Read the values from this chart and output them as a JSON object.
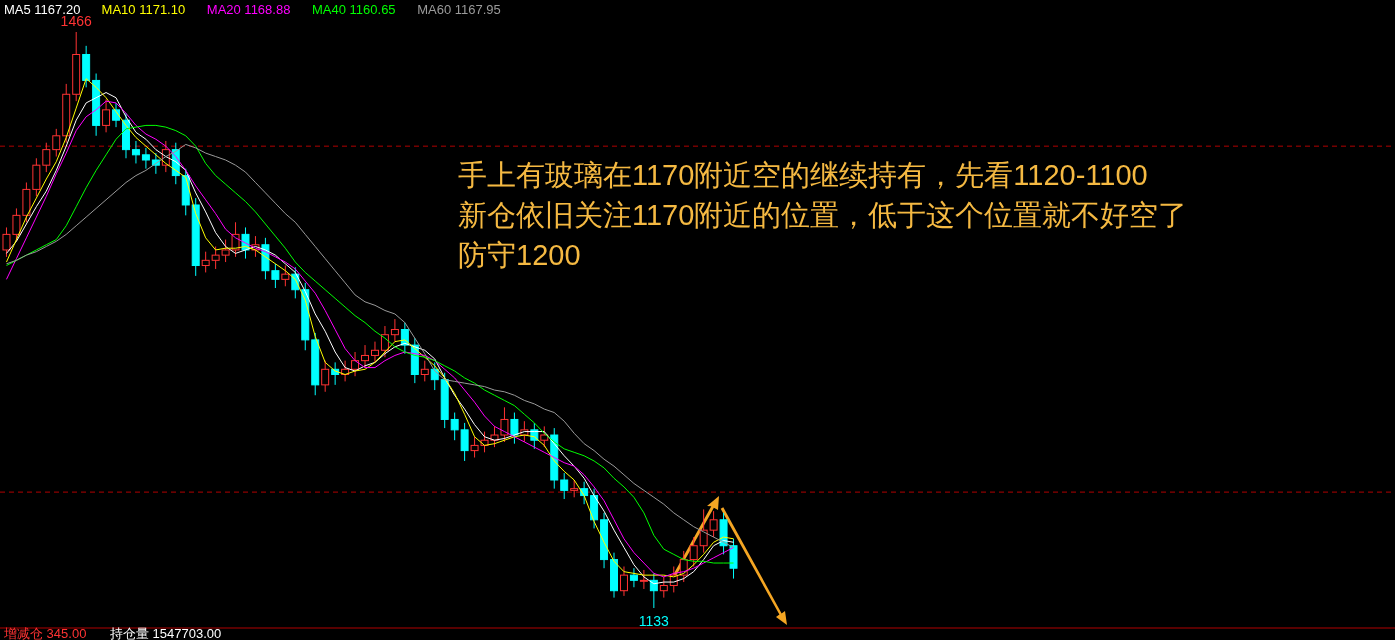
{
  "chart_data": {
    "type": "candlestick",
    "categories": [
      null,
      null,
      null,
      null,
      null,
      null,
      null,
      null,
      null,
      null,
      null,
      null,
      null,
      null,
      null,
      null,
      null,
      null,
      null,
      null,
      null,
      null,
      null,
      null,
      null,
      null,
      null,
      null,
      null,
      null,
      null,
      null,
      null,
      null,
      null,
      null,
      null,
      null,
      null,
      null,
      null,
      null,
      null,
      null,
      null,
      null,
      null,
      null,
      null,
      null,
      null,
      null,
      null,
      null,
      null,
      null,
      null,
      null,
      null,
      null,
      null,
      null,
      null,
      null,
      null,
      null,
      null,
      null,
      null,
      null,
      null,
      null,
      null,
      null
    ],
    "ohlc": [
      [
        1340,
        1353,
        1336,
        1349
      ],
      [
        1349,
        1364,
        1345,
        1360
      ],
      [
        1360,
        1379,
        1356,
        1375
      ],
      [
        1375,
        1393,
        1371,
        1389
      ],
      [
        1389,
        1402,
        1385,
        1398
      ],
      [
        1398,
        1410,
        1394,
        1406
      ],
      [
        1406,
        1436,
        1402,
        1430
      ],
      [
        1430,
        1466,
        1426,
        1453
      ],
      [
        1453,
        1458,
        1434,
        1438
      ],
      [
        1438,
        1442,
        1406,
        1412
      ],
      [
        1412,
        1427,
        1408,
        1421
      ],
      [
        1421,
        1425,
        1411,
        1415
      ],
      [
        1415,
        1419,
        1393,
        1398
      ],
      [
        1398,
        1403,
        1390,
        1395
      ],
      [
        1395,
        1399,
        1387,
        1392
      ],
      [
        1392,
        1396,
        1384,
        1389
      ],
      [
        1389,
        1403,
        1385,
        1398
      ],
      [
        1398,
        1402,
        1378,
        1383
      ],
      [
        1383,
        1387,
        1360,
        1366
      ],
      [
        1366,
        1370,
        1325,
        1331
      ],
      [
        1331,
        1339,
        1327,
        1334
      ],
      [
        1334,
        1342,
        1329,
        1337
      ],
      [
        1337,
        1346,
        1333,
        1340
      ],
      [
        1340,
        1356,
        1336,
        1349
      ],
      [
        1349,
        1353,
        1335,
        1340
      ],
      [
        1340,
        1348,
        1336,
        1343
      ],
      [
        1343,
        1347,
        1323,
        1328
      ],
      [
        1328,
        1332,
        1318,
        1323
      ],
      [
        1323,
        1331,
        1319,
        1326
      ],
      [
        1326,
        1330,
        1312,
        1317
      ],
      [
        1317,
        1321,
        1282,
        1288
      ],
      [
        1288,
        1292,
        1256,
        1262
      ],
      [
        1262,
        1276,
        1258,
        1271
      ],
      [
        1271,
        1275,
        1262,
        1268
      ],
      [
        1268,
        1276,
        1264,
        1271
      ],
      [
        1271,
        1281,
        1267,
        1276
      ],
      [
        1276,
        1285,
        1272,
        1279
      ],
      [
        1279,
        1287,
        1275,
        1282
      ],
      [
        1282,
        1296,
        1278,
        1291
      ],
      [
        1291,
        1300,
        1287,
        1294
      ],
      [
        1294,
        1298,
        1280,
        1285
      ],
      [
        1285,
        1289,
        1263,
        1268
      ],
      [
        1268,
        1276,
        1264,
        1271
      ],
      [
        1271,
        1275,
        1259,
        1265
      ],
      [
        1265,
        1269,
        1237,
        1242
      ],
      [
        1242,
        1246,
        1230,
        1236
      ],
      [
        1236,
        1240,
        1218,
        1224
      ],
      [
        1224,
        1232,
        1220,
        1227
      ],
      [
        1227,
        1235,
        1223,
        1230
      ],
      [
        1230,
        1238,
        1226,
        1233
      ],
      [
        1233,
        1249,
        1229,
        1242
      ],
      [
        1242,
        1246,
        1228,
        1233
      ],
      [
        1233,
        1241,
        1229,
        1236
      ],
      [
        1236,
        1240,
        1225,
        1230
      ],
      [
        1230,
        1238,
        1226,
        1233
      ],
      [
        1233,
        1237,
        1202,
        1207
      ],
      [
        1207,
        1211,
        1196,
        1201
      ],
      [
        1201,
        1207,
        1197,
        1202
      ],
      [
        1202,
        1206,
        1193,
        1198
      ],
      [
        1198,
        1202,
        1179,
        1184
      ],
      [
        1184,
        1188,
        1156,
        1161
      ],
      [
        1161,
        1165,
        1139,
        1143
      ],
      [
        1143,
        1157,
        1140,
        1152
      ],
      [
        1152,
        1156,
        1145,
        1149
      ],
      [
        1149,
        1155,
        1144,
        1149
      ],
      [
        1149,
        1153,
        1133,
        1143
      ],
      [
        1143,
        1151,
        1139,
        1146
      ],
      [
        1146,
        1157,
        1142,
        1152
      ],
      [
        1152,
        1166,
        1148,
        1161
      ],
      [
        1161,
        1174,
        1157,
        1169
      ],
      [
        1169,
        1190,
        1165,
        1178
      ],
      [
        1178,
        1189,
        1174,
        1184
      ],
      [
        1184,
        1188,
        1164,
        1169
      ],
      [
        1169,
        1173,
        1150,
        1156
      ]
    ],
    "colors": [
      "#ff3333",
      "#ff3333",
      "#ff3333",
      "#ff3333",
      "#ff3333",
      "#ff3333",
      "#ff3333",
      "#ff3333",
      "#00ffff",
      "#00ffff",
      "#ff3333",
      "#00ffff",
      "#00ffff",
      "#00ffff",
      "#00ffff",
      "#00ffff",
      "#ff3333",
      "#00ffff",
      "#00ffff",
      "#00ffff",
      "#ff3333",
      "#ff3333",
      "#ff3333",
      "#ff3333",
      "#00ffff",
      "#ff3333",
      "#00ffff",
      "#00ffff",
      "#ff3333",
      "#00ffff",
      "#00ffff",
      "#00ffff",
      "#ff3333",
      "#00ffff",
      "#ff3333",
      "#ff3333",
      "#ff3333",
      "#ff3333",
      "#ff3333",
      "#ff3333",
      "#00ffff",
      "#00ffff",
      "#ff3333",
      "#00ffff",
      "#00ffff",
      "#00ffff",
      "#00ffff",
      "#ff3333",
      "#ff3333",
      "#ff3333",
      "#ff3333",
      "#00ffff",
      "#ff3333",
      "#00ffff",
      "#ff3333",
      "#00ffff",
      "#00ffff",
      "#ff3333",
      "#00ffff",
      "#00ffff",
      "#00ffff",
      "#00ffff",
      "#ff3333",
      "#00ffff",
      "#ff3333",
      "#00ffff",
      "#ff3333",
      "#ff3333",
      "#ff3333",
      "#ff3333",
      "#ff3333",
      "#ff3333",
      "#00ffff",
      "#00ffff"
    ],
    "series": [
      {
        "name": "MA5 1167.20",
        "type": "line",
        "color": "#ffffff",
        "values": [
          1338,
          1345,
          1355,
          1365,
          1374,
          1386,
          1400,
          1415,
          1425,
          1428,
          1431,
          1428,
          1417,
          1408,
          1404,
          1398,
          1394,
          1391,
          1386,
          1373,
          1362,
          1350,
          1342,
          1338,
          1340,
          1342,
          1340,
          1337,
          1332,
          1327,
          1316,
          1303,
          1293,
          1281,
          1272,
          1270,
          1273,
          1275,
          1280,
          1284,
          1286,
          1284,
          1282,
          1277,
          1266,
          1256,
          1248,
          1239,
          1232,
          1230,
          1231,
          1233,
          1235,
          1235,
          1235,
          1228,
          1221,
          1215,
          1208,
          1198,
          1189,
          1178,
          1168,
          1158,
          1151,
          1147,
          1148,
          1148,
          1150,
          1154,
          1161,
          1169,
          1172,
          1171
        ]
      },
      {
        "name": "MA10 1171.10",
        "type": "line",
        "color": "#ffff00",
        "values": [
          1333,
          1346,
          1359,
          1370,
          1381,
          1391,
          1405,
          1422,
          1439,
          1434,
          1428,
          1420,
          1412,
          1405,
          1400,
          1395,
          1390,
          1386,
          1382,
          1361,
          1347,
          1340,
          1341,
          1341,
          1342,
          1340,
          1336,
          1332,
          1328,
          1323,
          1311,
          1290,
          1275,
          1270,
          1268,
          1270,
          1271,
          1275,
          1281,
          1287,
          1288,
          1283,
          1278,
          1273,
          1266,
          1257,
          1245,
          1232,
          1227,
          1228,
          1230,
          1232,
          1233,
          1232,
          1227,
          1218,
          1212,
          1207,
          1198,
          1183,
          1171,
          1160,
          1154,
          1153,
          1152,
          1152,
          1152,
          1151,
          1153,
          1158,
          1164,
          1171,
          1174,
          1173
        ]
      },
      {
        "name": "MA20 1168.88",
        "type": "line",
        "color": "#ff00ff",
        "values": [
          1323,
          1335,
          1347,
          1359,
          1371,
          1384,
          1396,
          1409,
          1417,
          1421,
          1426,
          1425,
          1419,
          1412,
          1407,
          1404,
          1400,
          1394,
          1386,
          1377,
          1369,
          1361,
          1352,
          1347,
          1344,
          1341,
          1339,
          1336,
          1333,
          1329,
          1322,
          1315,
          1305,
          1294,
          1283,
          1276,
          1272,
          1272,
          1276,
          1279,
          1281,
          1280,
          1279,
          1276,
          1271,
          1266,
          1259,
          1252,
          1244,
          1238,
          1235,
          1232,
          1229,
          1226,
          1223,
          1220,
          1217,
          1215,
          1210,
          1203,
          1195,
          1184,
          1173,
          1165,
          1159,
          1153,
          1151,
          1153,
          1154,
          1156,
          1159,
          1162,
          1165,
          1168
        ]
      },
      {
        "name": "MA40 1160.65",
        "type": "line",
        "color": "#00ff00",
        "values": [
          1331,
          1334,
          1337,
          1340,
          1343,
          1346,
          1354,
          1365,
          1376,
          1386,
          1395,
          1404,
          1410,
          1411,
          1412,
          1412,
          1411,
          1409,
          1406,
          1400,
          1390,
          1383,
          1378,
          1373,
          1368,
          1362,
          1355,
          1348,
          1341,
          1333,
          1327,
          1322,
          1317,
          1312,
          1307,
          1302,
          1298,
          1293,
          1289,
          1284,
          1281,
          1279,
          1278,
          1276,
          1273,
          1270,
          1266,
          1263,
          1259,
          1256,
          1253,
          1250,
          1245,
          1240,
          1234,
          1229,
          1225,
          1223,
          1221,
          1218,
          1214,
          1208,
          1203,
          1197,
          1188,
          1175,
          1167,
          1164,
          1161,
          1160,
          1160,
          1159,
          1159,
          1159
        ]
      },
      {
        "name": "MA60 1167.95",
        "type": "line",
        "color": "#9a9a9a",
        "values": [
          1332,
          1334,
          1337,
          1339,
          1342,
          1345,
          1349,
          1354,
          1359,
          1364,
          1369,
          1374,
          1379,
          1383,
          1386,
          1390,
          1394,
          1397,
          1401,
          1399,
          1396,
          1394,
          1392,
          1389,
          1385,
          1379,
          1373,
          1367,
          1361,
          1356,
          1349,
          1342,
          1335,
          1328,
          1321,
          1314,
          1310,
          1308,
          1305,
          1303,
          1298,
          1289,
          1280,
          1270,
          1265,
          1264,
          1263,
          1262,
          1261,
          1259,
          1258,
          1256,
          1253,
          1251,
          1248,
          1246,
          1241,
          1234,
          1228,
          1224,
          1219,
          1215,
          1210,
          1205,
          1201,
          1197,
          1193,
          1188,
          1184,
          1180,
          1177,
          1174,
          1171,
          1168
        ]
      }
    ],
    "ref_lines": [
      {
        "axis": "y",
        "value": 1400,
        "color": "#b00000",
        "line_style": "dashed"
      },
      {
        "axis": "y",
        "value": 1200,
        "color": "#b00000",
        "line_style": "dashed"
      }
    ],
    "annotations": [
      "手上有玻璃在1170附近空的继续持有，先看1120-1100",
      "新仓依旧关注1170附近的位置，低于这个位置就不好空了",
      "防守1200",
      {
        "text": "1466",
        "y": 1466
      },
      {
        "text": "1133",
        "y": 1133
      },
      "增减仓 345.00",
      "持仓量 1547703.00"
    ],
    "legend": "top left"
  }
}
